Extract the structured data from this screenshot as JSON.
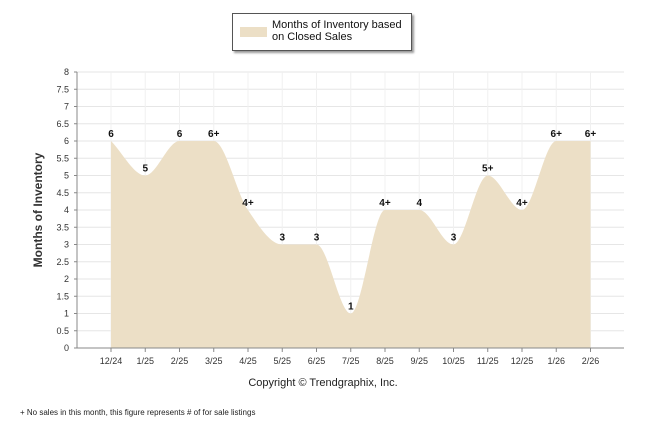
{
  "chart_data": {
    "type": "area",
    "title": "",
    "xlabel": "",
    "ylabel": "Months of Inventory",
    "ylim": [
      0,
      8
    ],
    "yticks": [
      "0",
      "0.5",
      "1",
      "1.5",
      "2",
      "2.5",
      "3",
      "3.5",
      "4",
      "4.5",
      "5",
      "5.5",
      "6",
      "6.5",
      "7",
      "7.5",
      "8"
    ],
    "categories": [
      "12/24",
      "1/25",
      "2/25",
      "3/25",
      "4/25",
      "5/25",
      "6/25",
      "7/25",
      "8/25",
      "9/25",
      "10/25",
      "11/25",
      "12/25",
      "1/26",
      "2/26"
    ],
    "series": [
      {
        "name": "Months of Inventory based on Closed Sales",
        "values": [
          6,
          5,
          6,
          6,
          4,
          3,
          3,
          1,
          4,
          4,
          3,
          5,
          4,
          6,
          6
        ],
        "data_labels": [
          "6",
          "5",
          "6",
          "6+",
          "4+",
          "3",
          "3",
          "1",
          "4+",
          "4",
          "3",
          "5+",
          "4+",
          "6+",
          "6+"
        ],
        "color": "#ecdfc6"
      }
    ],
    "legend": "top-center",
    "grid": true
  },
  "legend_label": "Months of Inventory based on Closed Sales",
  "copyright": "Copyright © Trendgraphix, Inc.",
  "footnote": "+ No sales in this month, this figure represents # of for sale listings"
}
